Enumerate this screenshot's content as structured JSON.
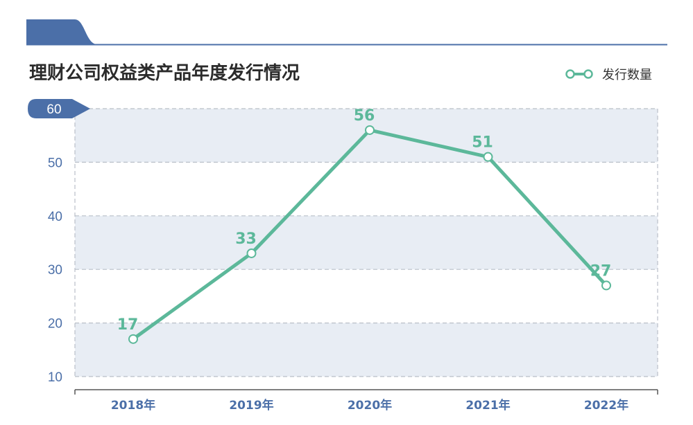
{
  "title": "理财公司权益类产品年度发行情况",
  "colors": {
    "line": "#5cb89a",
    "band": "#e8edf4",
    "accent": "#4b6fa8",
    "grid": "#b9bfc8"
  },
  "chart_data": {
    "type": "line",
    "title": "理财公司权益类产品年度发行情况",
    "categories": [
      "2018年",
      "2019年",
      "2020年",
      "2021年",
      "2022年"
    ],
    "series": [
      {
        "name": "发行数量",
        "values": [
          17,
          33,
          56,
          51,
          27
        ]
      }
    ],
    "yticks": [
      60,
      50,
      40,
      30,
      20,
      10
    ],
    "ylim": [
      10,
      60
    ],
    "grid": true,
    "legend_position": "top-right",
    "data_labels": true
  }
}
